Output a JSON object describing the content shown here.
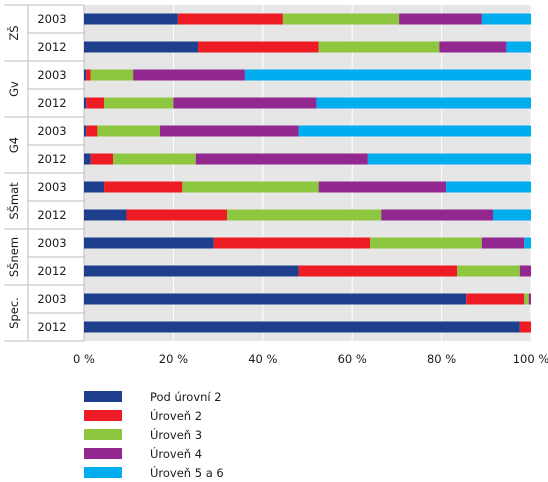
{
  "chart_data": {
    "type": "bar",
    "orientation": "horizontal",
    "stacked": true,
    "groups": [
      "ZŠ",
      "Gv",
      "G4",
      "SŠmat",
      "SŠnem",
      "Spec."
    ],
    "years": [
      "2003",
      "2012"
    ],
    "rows": [
      {
        "group": "ZŠ",
        "year": "2003",
        "values": [
          21,
          23.5,
          26,
          18.5,
          11
        ]
      },
      {
        "group": "ZŠ",
        "year": "2012",
        "values": [
          25.5,
          27,
          27,
          15,
          5.5
        ]
      },
      {
        "group": "Gv",
        "year": "2003",
        "values": [
          0.5,
          1,
          9.5,
          25,
          64
        ]
      },
      {
        "group": "Gv",
        "year": "2012",
        "values": [
          0.5,
          4,
          15.5,
          32,
          48
        ]
      },
      {
        "group": "G4",
        "year": "2003",
        "values": [
          0.5,
          2.5,
          14,
          31,
          52
        ]
      },
      {
        "group": "G4",
        "year": "2012",
        "values": [
          1.5,
          5,
          18.5,
          38.5,
          36.5
        ]
      },
      {
        "group": "SŠmat",
        "year": "2003",
        "values": [
          4.5,
          17.5,
          30.5,
          28.5,
          19
        ]
      },
      {
        "group": "SŠmat",
        "year": "2012",
        "values": [
          9.5,
          22.5,
          34.5,
          25,
          8.5
        ]
      },
      {
        "group": "SŠnem",
        "year": "2003",
        "values": [
          29,
          35,
          25,
          9.5,
          1.5
        ]
      },
      {
        "group": "SŠnem",
        "year": "2012",
        "values": [
          48,
          35.5,
          14,
          2.5,
          0
        ]
      },
      {
        "group": "Spec.",
        "year": "2003",
        "values": [
          85.5,
          13,
          1,
          0.5,
          0
        ]
      },
      {
        "group": "Spec.",
        "year": "2012",
        "values": [
          97.5,
          2.5,
          0,
          0,
          0
        ]
      }
    ],
    "series": [
      {
        "name": "Pod úrovní 2",
        "color": "#1d3f8e"
      },
      {
        "name": "Úroveň 2",
        "color": "#ed1c24"
      },
      {
        "name": "Úroveň 3",
        "color": "#8dc63f"
      },
      {
        "name": "Úroveň 4",
        "color": "#92278f"
      },
      {
        "name": "Úroveň 5 a 6",
        "color": "#00aeef"
      }
    ],
    "xlim": [
      0,
      100
    ],
    "xticks": [
      "0 %",
      "20 %",
      "40 %",
      "60 %",
      "80 %",
      "100 %"
    ],
    "legend_position": "bottom-left",
    "background": "#e6e6e6",
    "grid": true
  }
}
